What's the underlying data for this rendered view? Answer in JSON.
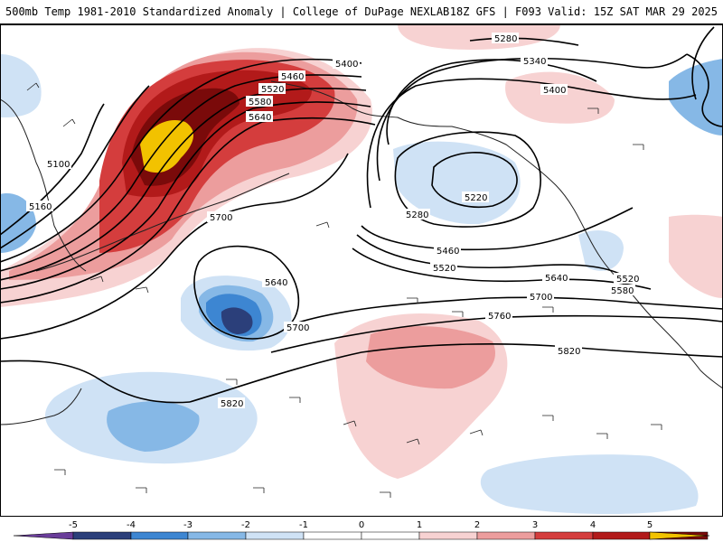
{
  "header": {
    "title": "500mb Temp 1981-2010 Standardized Anomaly | College of DuPage NEXLAB",
    "run_info": "18Z GFS | F093 Valid: 15Z SAT MAR 29 2025"
  },
  "colors": {
    "neg5": "#6a3d9a",
    "neg4": "#2b3f7a",
    "neg3": "#3d86d2",
    "neg2": "#86b8e6",
    "neg1": "#cfe2f5",
    "zero": "#ffffff",
    "pos1": "#f7d2d2",
    "pos2": "#ec9d9d",
    "pos3": "#d43d3d",
    "pos4": "#b21a1a",
    "pos5": "#7a0a0a",
    "pos6": "#f2c200"
  },
  "contour_labels": [
    "5280",
    "5340",
    "5400",
    "5400",
    "5460",
    "5520",
    "5580",
    "5640",
    "5100",
    "5160",
    "5220",
    "5280",
    "5460",
    "5520",
    "5640",
    "5580",
    "5520",
    "5700",
    "5700",
    "5640",
    "5700",
    "5760",
    "5820",
    "5820"
  ],
  "colorbar": {
    "ticks": [
      "-5",
      "-4",
      "-3",
      "-2",
      "-1",
      "0",
      "1",
      "2",
      "3",
      "4",
      "5"
    ]
  }
}
